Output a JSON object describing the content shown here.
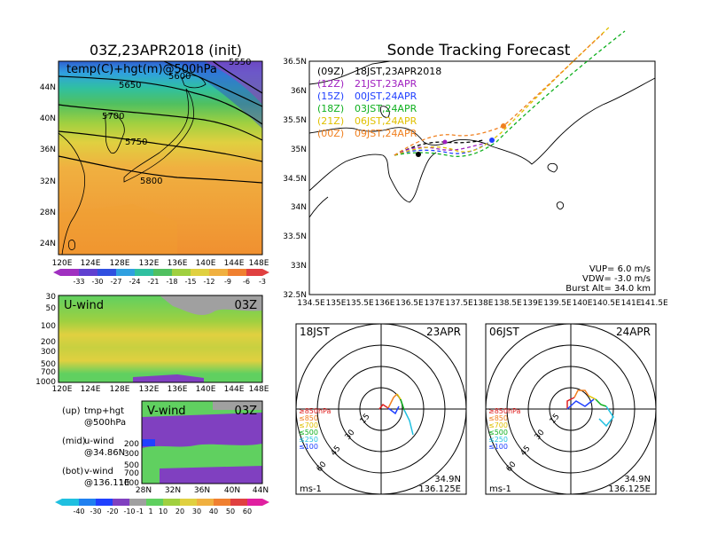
{
  "map_panel": {
    "title": "03Z,23APR2018 (init)",
    "overlay_label": "temp(C)+hgt(m)@500hPa",
    "x_ticks": [
      "120E",
      "124E",
      "128E",
      "132E",
      "136E",
      "140E",
      "144E",
      "148E"
    ],
    "y_ticks": [
      "44N",
      "40N",
      "36N",
      "32N",
      "28N",
      "24N"
    ],
    "contours": [
      "5550",
      "5600",
      "5650",
      "5700",
      "5750",
      "5800"
    ],
    "colorbar": [
      "-33",
      "-30",
      "-27",
      "-24",
      "-21",
      "-18",
      "-15",
      "-12",
      "-9",
      "-6",
      "-3"
    ]
  },
  "uwind_panel": {
    "label": "U-wind",
    "time": "03Z",
    "y_ticks": [
      "30",
      "50",
      "100",
      "200",
      "300",
      "500",
      "700",
      "1000"
    ],
    "x_ticks": [
      "120E",
      "124E",
      "128E",
      "132E",
      "136E",
      "140E",
      "144E",
      "148E"
    ]
  },
  "vwind_panel": {
    "label": "V-wind",
    "time": "03Z",
    "y_ticks": [
      "200",
      "300",
      "500",
      "700",
      "1000"
    ],
    "x_ticks": [
      "28N",
      "32N",
      "36N",
      "40N",
      "44N"
    ]
  },
  "legend_notes": [
    {
      "key": "(up)",
      "l1": "tmp+hgt",
      "l2": "@500hPa"
    },
    {
      "key": "(mid)",
      "l1": "u-wind",
      "l2": "@34.86N"
    },
    {
      "key": "(bot)",
      "l1": "v-wind",
      "l2": "@136.11E"
    }
  ],
  "wind_colorbar": [
    "-40",
    "-30",
    "-20",
    "-10",
    "-1",
    "1",
    "10",
    "20",
    "30",
    "40",
    "50",
    "60"
  ],
  "tracking": {
    "title": "Sonde Tracking Forecast",
    "x_ticks": [
      "134.5E",
      "135E",
      "135.5E",
      "136E",
      "136.5E",
      "137E",
      "137.5E",
      "138E",
      "138.5E",
      "139E",
      "139.5E",
      "140E",
      "140.5E",
      "141E",
      "141.5E"
    ],
    "y_ticks": [
      "36.5N",
      "36N",
      "35.5N",
      "35N",
      "34.5N",
      "34N",
      "33.5N",
      "33N",
      "32.5N"
    ],
    "launches": [
      {
        "key": "(09Z)",
        "label": "18JST,23APR2018",
        "color": "#000000"
      },
      {
        "key": "(12Z)",
        "label": "21JST,23APR",
        "color": "#a020c0"
      },
      {
        "key": "(15Z)",
        "label": "00JST,24APR",
        "color": "#2040ff"
      },
      {
        "key": "(18Z)",
        "label": "03JST,24APR",
        "color": "#10b020"
      },
      {
        "key": "(21Z)",
        "label": "06JST,24APR",
        "color": "#e0c000"
      },
      {
        "key": "(00Z)",
        "label": "09JST,24APR",
        "color": "#f08020"
      }
    ],
    "params": [
      "VUP=  6.0 m/s",
      "VDW= -3.0 m/s",
      "Burst Alt= 34.0 km"
    ]
  },
  "hodographs": [
    {
      "time": "18JST",
      "date": "23APR",
      "lat": "34.9N",
      "lon": "136.125E",
      "unit": "ms-1"
    },
    {
      "time": "06JST",
      "date": "24APR",
      "lat": "34.9N",
      "lon": "136.125E",
      "unit": "ms-1"
    }
  ],
  "hodo_legend": [
    {
      "text": "≥850hPa",
      "color": "#e02020"
    },
    {
      "text": "≤850",
      "color": "#f08020"
    },
    {
      "text": "≤700",
      "color": "#e0c000"
    },
    {
      "text": "≤500",
      "color": "#10b020"
    },
    {
      "text": "≤250",
      "color": "#20c0e0"
    },
    {
      "text": "≤100",
      "color": "#2040ff"
    }
  ],
  "ring_labels": [
    "15",
    "30",
    "45",
    "60"
  ]
}
